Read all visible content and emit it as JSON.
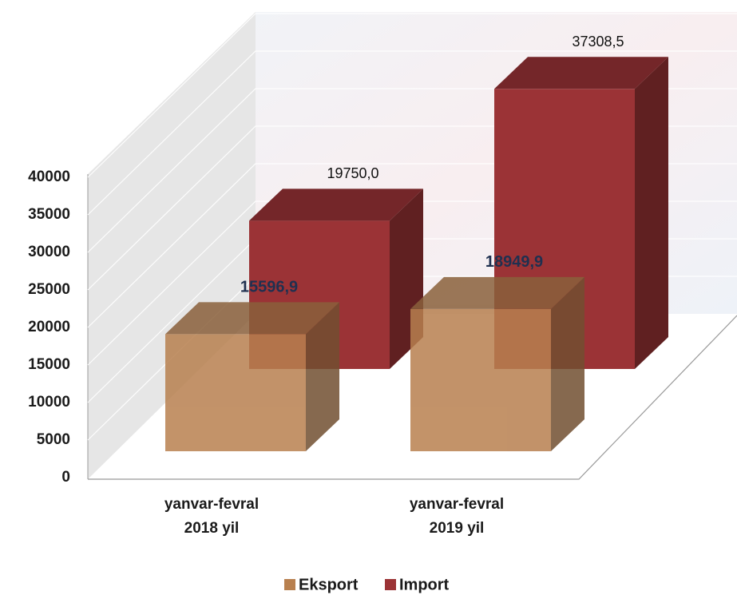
{
  "chart_data": {
    "type": "bar3d",
    "categories": [
      "yanvar-fevral\n2018 yil",
      "yanvar-fevral\n2019 yil"
    ],
    "series": [
      {
        "name": "Eksport",
        "color": "#b8804f",
        "values": [
          15596.9,
          18949.9
        ],
        "value_labels": [
          "15596,9",
          "18949,9"
        ]
      },
      {
        "name": "Import",
        "color": "#9b3336",
        "values": [
          19750.0,
          37308.5
        ],
        "value_labels": [
          "19750,0",
          "37308,5"
        ]
      }
    ],
    "ylim": [
      0,
      40000
    ],
    "yticks": [
      0,
      5000,
      10000,
      15000,
      20000,
      25000,
      30000,
      35000,
      40000
    ],
    "grid": true,
    "legend": "bottom"
  }
}
